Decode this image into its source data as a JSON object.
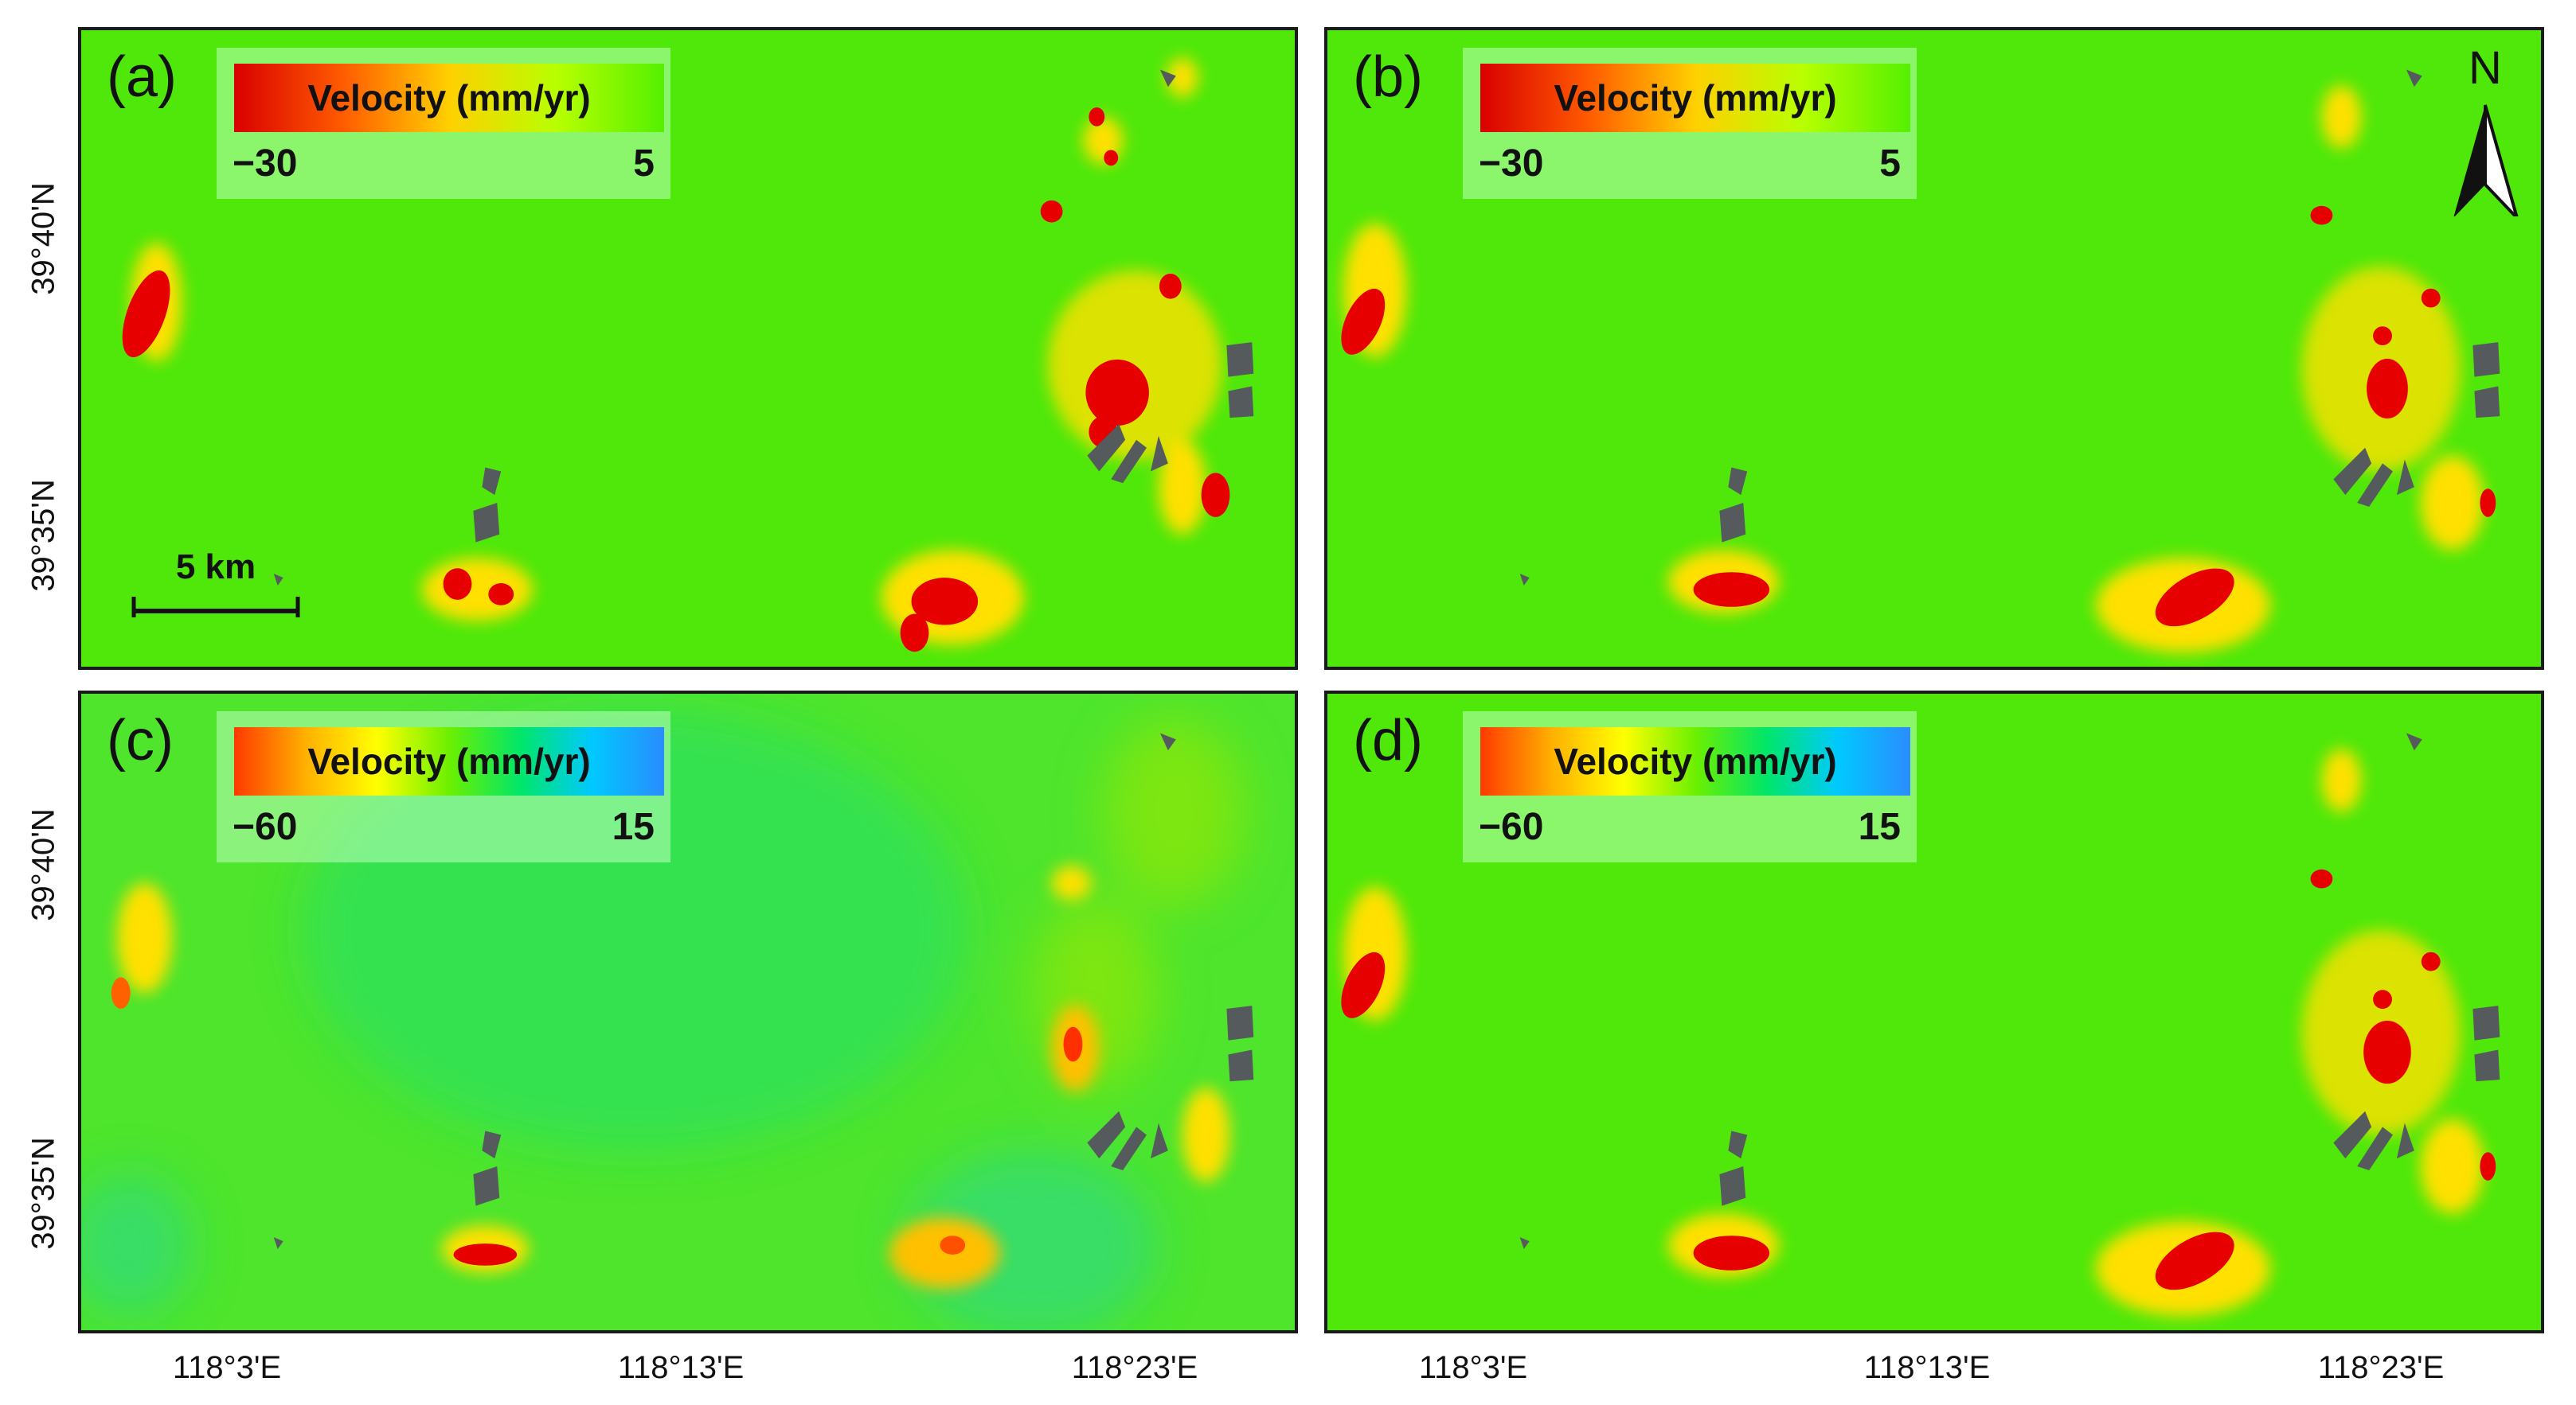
{
  "panels": [
    {
      "id": "a",
      "label": "(a)",
      "legend": {
        "title": "Velocity (mm/yr)",
        "min": "−30",
        "max": "5",
        "colors": [
          "#d90000",
          "#ff5a00",
          "#ffd000",
          "#b8ff00",
          "#55f000"
        ]
      }
    },
    {
      "id": "b",
      "label": "(b)",
      "legend": {
        "title": "Velocity (mm/yr)",
        "min": "−30",
        "max": "5",
        "colors": [
          "#d90000",
          "#ff5a00",
          "#ffd000",
          "#b8ff00",
          "#55f000"
        ]
      }
    },
    {
      "id": "c",
      "label": "(c)",
      "legend": {
        "title": "Velocity (mm/yr)",
        "min": "−60",
        "max": "15",
        "colors": [
          "#ff3a00",
          "#ffb000",
          "#ffff00",
          "#6cf000",
          "#00e66a",
          "#00c8ff",
          "#2a8cff"
        ]
      }
    },
    {
      "id": "d",
      "label": "(d)",
      "legend": {
        "title": "Velocity (mm/yr)",
        "min": "−60",
        "max": "15",
        "colors": [
          "#ff3a00",
          "#ffb000",
          "#ffff00",
          "#6cf000",
          "#00e66a",
          "#00c8ff",
          "#2a8cff"
        ]
      }
    }
  ],
  "north_arrow": {
    "label": "N"
  },
  "scale_bar": {
    "label": "5 km"
  },
  "latitude_ticks": [
    "39°40'N",
    "39°35'N"
  ],
  "longitude_ticks": [
    "118°3'E",
    "118°13'E",
    "118°23'E"
  ],
  "colors": {
    "background_green": "#4fe80a",
    "background_green_c": "#4ee52c",
    "subsidence_red": "#e60000",
    "masked_gray": "#555a5c",
    "frame": "#1a1a1a"
  }
}
